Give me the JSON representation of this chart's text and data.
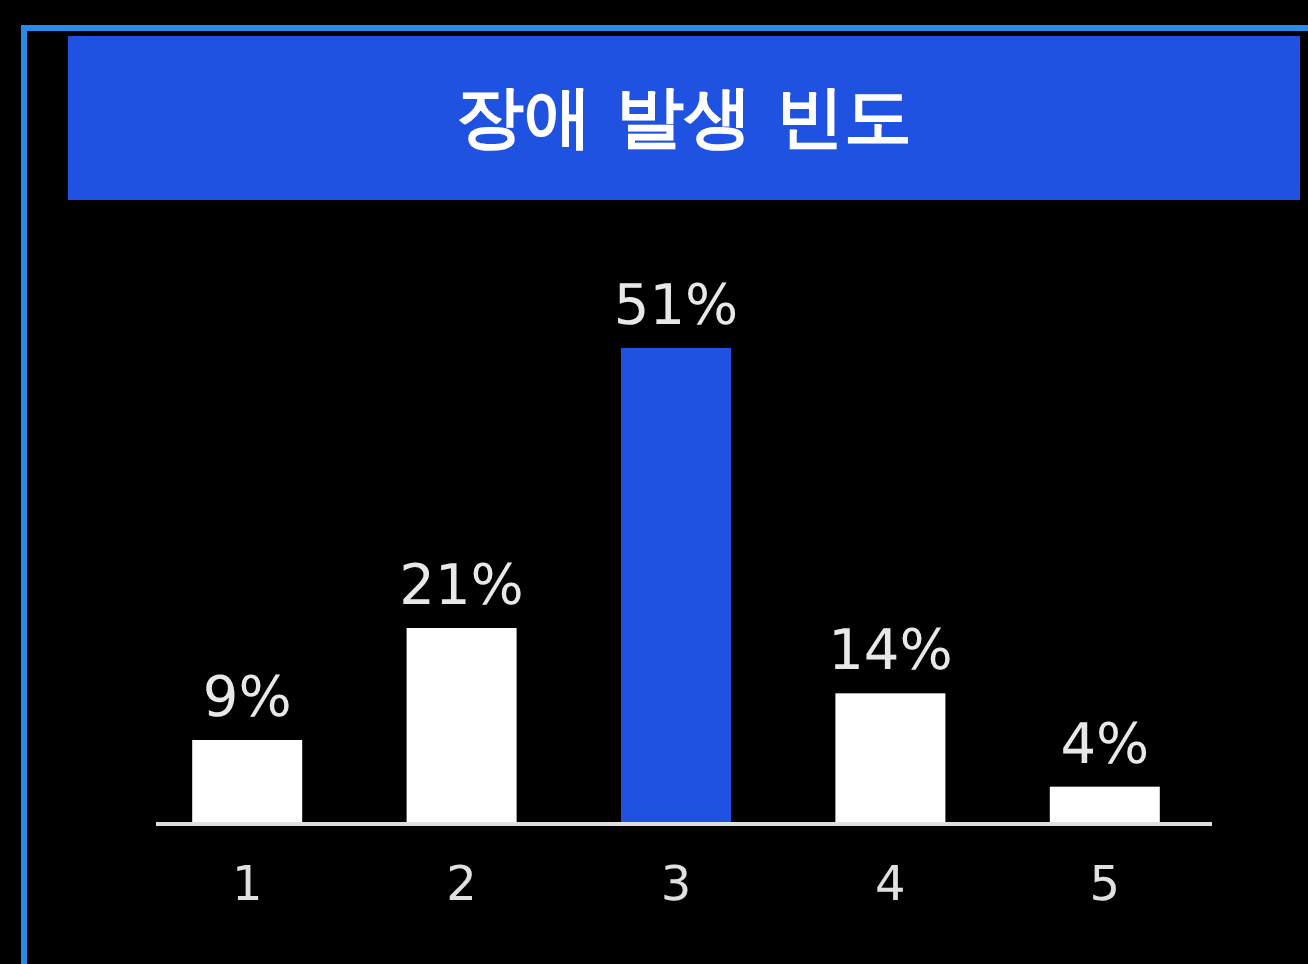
{
  "chart_data": {
    "type": "bar",
    "title": "장애 발생 빈도",
    "categories": [
      "1",
      "2",
      "3",
      "4",
      "5"
    ],
    "values": [
      9,
      21,
      51,
      14,
      4
    ],
    "colors": [
      "#ffffff",
      "#ffffff",
      "#1f52e0",
      "#ffffff",
      "#ffffff"
    ],
    "value_labels": [
      "9%",
      "21%",
      "51%",
      "14%",
      "4%"
    ]
  }
}
